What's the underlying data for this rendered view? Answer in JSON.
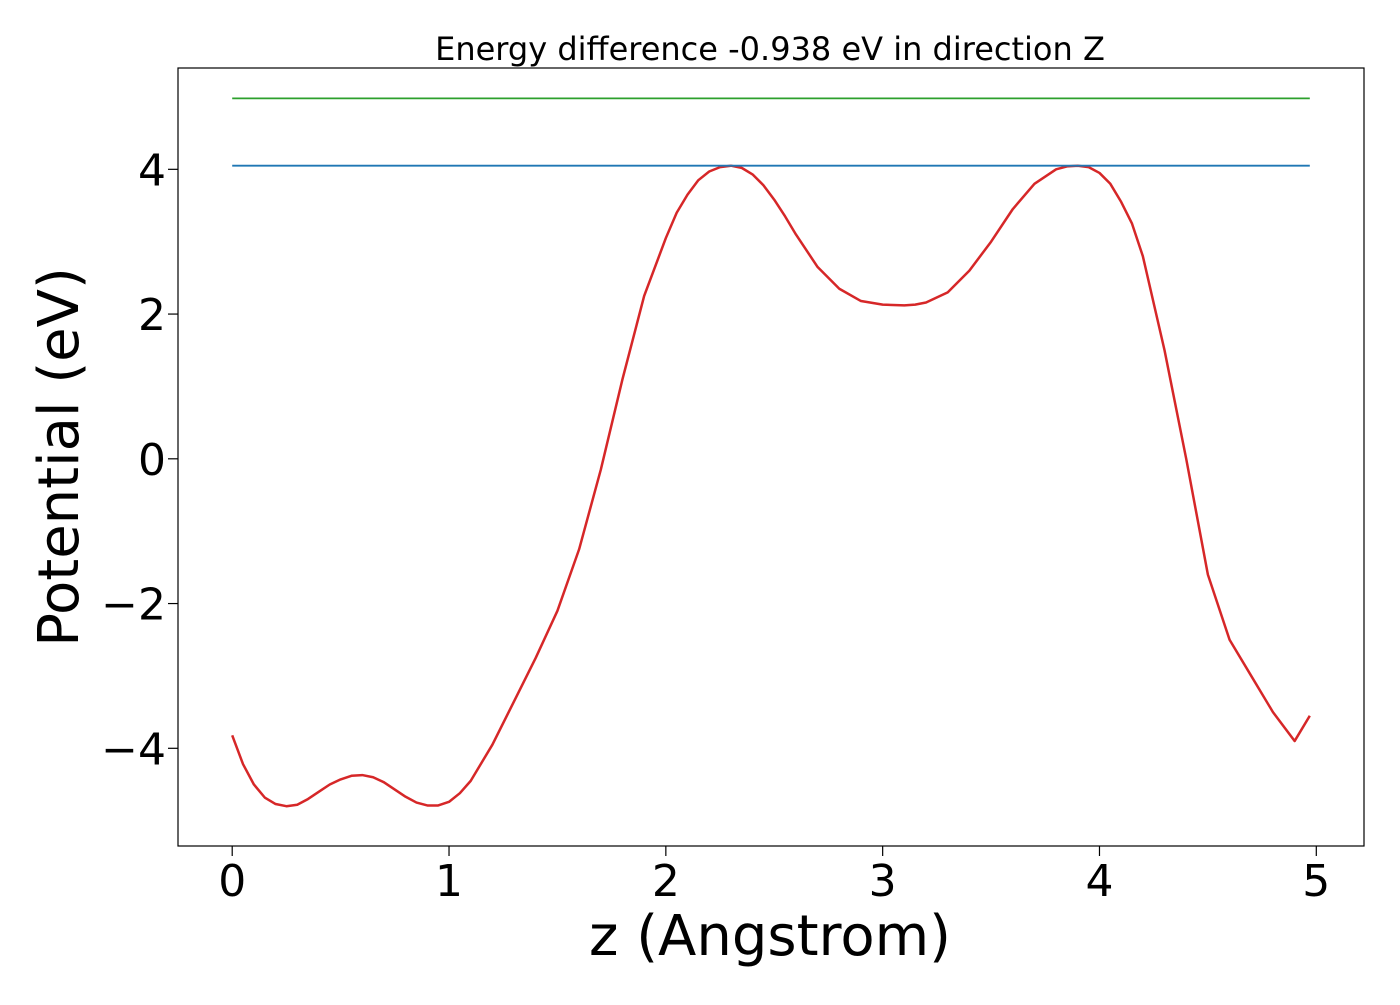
{
  "chart_data": {
    "type": "line",
    "title": "Energy difference -0.938 eV in direction Z",
    "xlabel": "z (Angstrom)",
    "ylabel": "Potential (eV)",
    "xlim": [
      -0.25,
      5.22
    ],
    "ylim": [
      -5.35,
      5.4
    ],
    "xticks": [
      0,
      1,
      2,
      3,
      4,
      5
    ],
    "xtick_labels": [
      "0",
      "1",
      "2",
      "3",
      "4",
      "5"
    ],
    "yticks": [
      -4,
      -2,
      0,
      2,
      4
    ],
    "ytick_labels": [
      "−4",
      "−2",
      "0",
      "2",
      "4"
    ],
    "grid": false,
    "series": [
      {
        "color": "#d62728",
        "x": [
          0,
          0.05,
          0.1,
          0.15,
          0.2,
          0.25,
          0.3,
          0.35,
          0.4,
          0.45,
          0.5,
          0.55,
          0.6,
          0.65,
          0.7,
          0.75,
          0.8,
          0.85,
          0.9,
          0.95,
          1.0,
          1.05,
          1.1,
          1.2,
          1.3,
          1.4,
          1.5,
          1.6,
          1.7,
          1.8,
          1.9,
          2.0,
          2.05,
          2.1,
          2.15,
          2.2,
          2.25,
          2.3,
          2.35,
          2.4,
          2.45,
          2.5,
          2.55,
          2.6,
          2.7,
          2.8,
          2.9,
          3.0,
          3.1,
          3.15,
          3.2,
          3.3,
          3.4,
          3.5,
          3.6,
          3.7,
          3.8,
          3.85,
          3.9,
          3.95,
          4.0,
          4.05,
          4.1,
          4.15,
          4.2,
          4.3,
          4.4,
          4.5,
          4.6,
          4.7,
          4.8,
          4.9,
          4.97
        ],
        "y": [
          -3.82,
          -4.22,
          -4.5,
          -4.68,
          -4.77,
          -4.8,
          -4.78,
          -4.7,
          -4.6,
          -4.5,
          -4.43,
          -4.38,
          -4.37,
          -4.4,
          -4.47,
          -4.57,
          -4.67,
          -4.75,
          -4.79,
          -4.79,
          -4.74,
          -4.62,
          -4.45,
          -3.95,
          -3.35,
          -2.75,
          -2.1,
          -1.25,
          -0.15,
          1.1,
          2.25,
          3.05,
          3.4,
          3.65,
          3.85,
          3.97,
          4.03,
          4.05,
          4.02,
          3.93,
          3.78,
          3.58,
          3.35,
          3.1,
          2.65,
          2.35,
          2.18,
          2.13,
          2.12,
          2.13,
          2.16,
          2.3,
          2.6,
          3.0,
          3.45,
          3.8,
          4.0,
          4.04,
          4.05,
          4.03,
          3.95,
          3.8,
          3.55,
          3.25,
          2.8,
          1.5,
          0.0,
          -1.6,
          -2.5,
          -3.0,
          -3.5,
          -3.9,
          -3.55
        ]
      },
      {
        "color": "#1f77b4",
        "x": [
          0,
          4.97
        ],
        "y": [
          4.05,
          4.05
        ]
      },
      {
        "color": "#2ca02c",
        "x": [
          0,
          4.97
        ],
        "y": [
          4.98,
          4.98
        ]
      }
    ]
  }
}
